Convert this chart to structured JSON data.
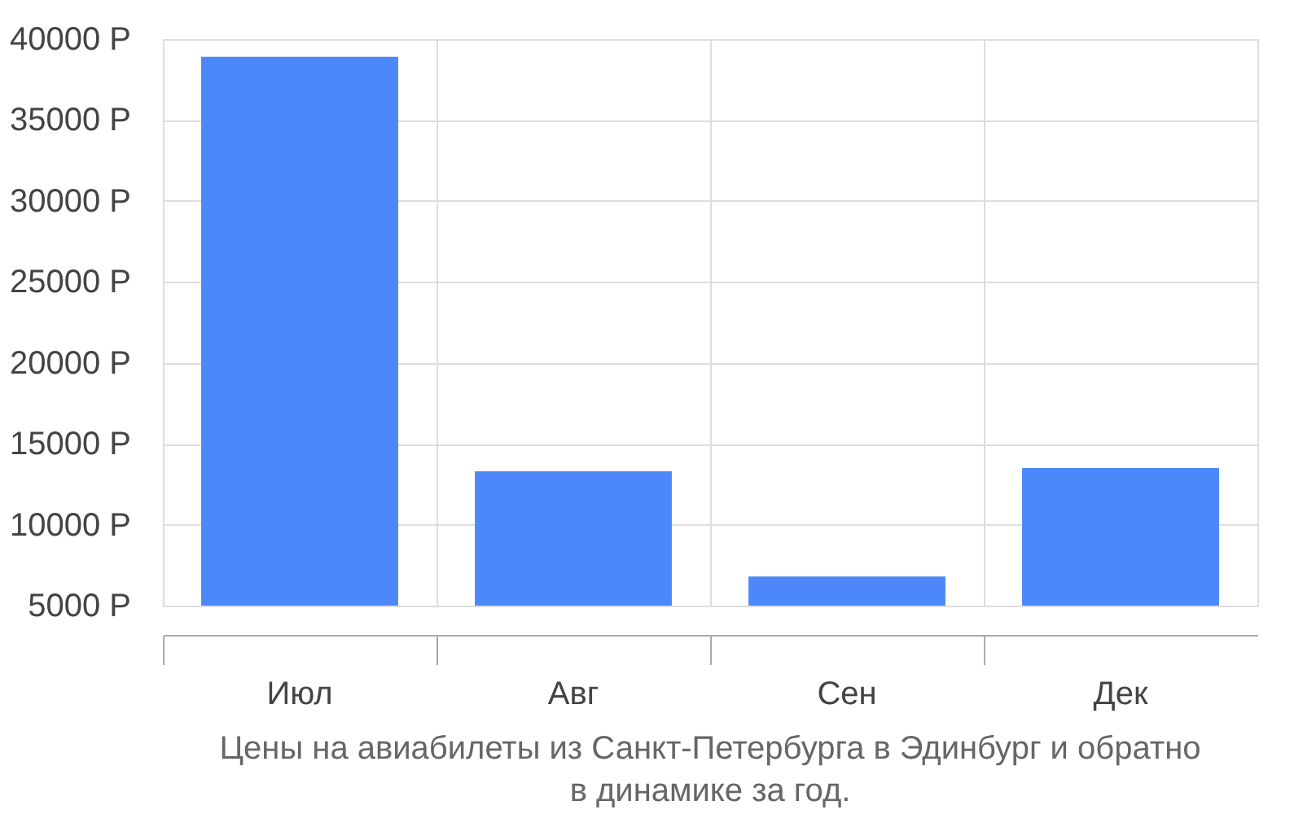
{
  "chart_data": {
    "type": "bar",
    "title": [
      "Цены на авиабилеты из Санкт-Петербурга в Эдинбург и обратно",
      "в динамике за год."
    ],
    "categories": [
      "Июл",
      "Авг",
      "Сен",
      "Дек"
    ],
    "values": [
      38900,
      13300,
      6800,
      13500
    ],
    "color": "#4d88fa",
    "ylim": [
      5000,
      40000
    ],
    "yticks": [
      {
        "value": 5000,
        "label": "5000 Р"
      },
      {
        "value": 10000,
        "label": "10000 Р"
      },
      {
        "value": 15000,
        "label": "15000 Р"
      },
      {
        "value": 20000,
        "label": "20000 Р"
      },
      {
        "value": 25000,
        "label": "25000 Р"
      },
      {
        "value": 30000,
        "label": "30000 Р"
      },
      {
        "value": 35000,
        "label": "35000 Р"
      },
      {
        "value": 40000,
        "label": "40000 Р"
      }
    ],
    "grid": true
  }
}
